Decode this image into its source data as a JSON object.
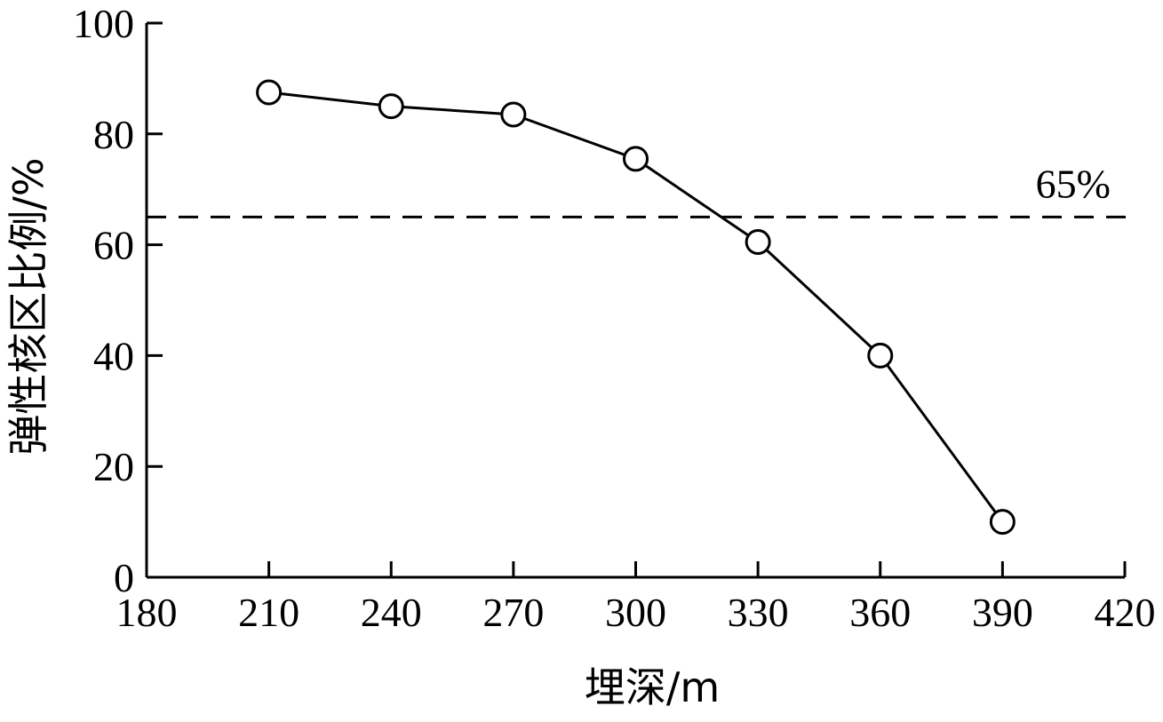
{
  "chart_data": {
    "type": "line",
    "title": "",
    "xlabel": "埋深/m",
    "ylabel": "弹性核区比例/%",
    "xlim": [
      180,
      420
    ],
    "ylim": [
      0,
      100
    ],
    "xticks": [
      "180",
      "210",
      "240",
      "270",
      "300",
      "330",
      "360",
      "390",
      "420"
    ],
    "yticks": [
      "0",
      "20",
      "40",
      "60",
      "80",
      "100"
    ],
    "grid": false,
    "legend": "none",
    "series": [
      {
        "x": [
          210,
          240,
          270,
          300,
          330,
          360,
          390
        ],
        "y": [
          87.5,
          85,
          83.5,
          75.5,
          60.5,
          40,
          10
        ],
        "marker": "open-circle",
        "color": "#000000"
      }
    ],
    "reference_line": {
      "y": 65,
      "label": "65%",
      "style": "dashed",
      "color": "#000000"
    }
  }
}
